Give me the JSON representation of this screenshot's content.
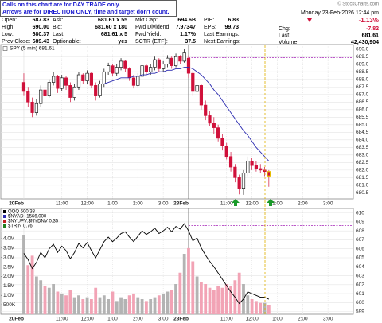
{
  "notice": [
    "Calls on this chart are for DAY TRADE only.",
    "Arrows are for DIRECTION ONLY, time and target don't count."
  ],
  "header": {
    "columns": [
      [
        [
          "Open:",
          "687.83"
        ],
        [
          "High:",
          "690.00"
        ],
        [
          "Low:",
          "680.37"
        ],
        [
          "Prev Close:",
          "689.43"
        ]
      ],
      [
        [
          "Ask:",
          "681.61 x 55"
        ],
        [
          "Bid:",
          "681.60 x 180"
        ],
        [
          "Last:",
          "681.61 x 5"
        ],
        [
          "Optionable:",
          "yes"
        ]
      ],
      [
        [
          "Mkt Cap:",
          "694.6B"
        ],
        [
          "Fwd Dividend:",
          "7.97347"
        ],
        [
          "Fwd Yield:",
          "1.17%"
        ],
        [
          "SCTR (ETF):",
          "37.5"
        ]
      ],
      [
        [
          "P/E:",
          "6.83"
        ],
        [
          "EPS:",
          "99.73"
        ],
        [
          "Last Earnings:"
        ],
        [
          "Next Earnings:"
        ]
      ]
    ],
    "date": "Monday 23-Feb-2026 12:44 pm",
    "change_pct": "-1.13%",
    "right": [
      [
        "Chg:",
        "-7.82"
      ],
      [
        "Last:",
        "681.61"
      ],
      [
        "Volume:",
        "42,430,904"
      ]
    ],
    "credit": "© StockCharts.com"
  },
  "chart_data": [
    {
      "type": "candlestick",
      "title": "SPY (5 min) 681.61",
      "x": [
        0,
        2,
        4,
        6,
        8,
        10,
        12,
        14,
        16,
        18,
        20,
        22,
        24,
        26,
        28,
        30,
        32,
        34,
        36,
        38,
        40,
        42,
        44,
        46,
        48,
        50,
        52,
        54,
        56,
        58,
        60,
        62,
        64,
        66,
        68,
        70,
        72,
        74,
        76,
        78,
        80,
        82,
        84,
        86,
        88,
        90,
        92,
        94,
        96,
        98,
        100,
        102,
        104,
        106,
        108,
        110,
        112,
        114,
        116
      ],
      "open": [
        687.8,
        687.2,
        686.5,
        685.8,
        686.4,
        687.3,
        686.9,
        687.8,
        688.2,
        687.4,
        688.1,
        687.6,
        686.8,
        687.5,
        688.3,
        687.9,
        688.4,
        687.6,
        686.9,
        687.7,
        688.5,
        688.9,
        688.4,
        688.8,
        689.2,
        688.7,
        688.1,
        687.6,
        688.2,
        688.9,
        688.5,
        688.8,
        689.3,
        688.7,
        689.0,
        689.4,
        688.9,
        689.5,
        689.2,
        689.4,
        688.4,
        687.2,
        687.6,
        686.3,
        685.6,
        685.1,
        684.8,
        684.1,
        683.6,
        682.9,
        682.2,
        681.5,
        680.8,
        681.8,
        682.6,
        682.3,
        682.1,
        682.0,
        681.9
      ],
      "high": [
        688.4,
        687.5,
        686.8,
        686.7,
        687.6,
        687.5,
        688.0,
        688.5,
        688.3,
        688.3,
        688.2,
        687.8,
        687.7,
        688.5,
        688.4,
        688.6,
        688.5,
        687.8,
        687.9,
        688.7,
        689.1,
        689.0,
        689.0,
        689.4,
        689.3,
        688.8,
        688.3,
        688.4,
        689.1,
        689.0,
        689.0,
        689.5,
        689.4,
        689.2,
        689.6,
        689.5,
        689.7,
        689.6,
        690.0,
        689.6,
        688.6,
        687.9,
        687.7,
        686.6,
        685.9,
        685.5,
        685.0,
        684.4,
        683.8,
        683.2,
        682.4,
        681.7,
        682.0,
        682.9,
        682.8,
        682.6,
        682.4,
        682.2,
        682.0
      ],
      "low": [
        686.9,
        686.2,
        685.5,
        685.6,
        686.2,
        686.6,
        686.8,
        687.6,
        687.1,
        687.2,
        687.3,
        686.5,
        686.6,
        687.3,
        687.7,
        687.7,
        687.4,
        686.6,
        686.8,
        687.5,
        688.3,
        688.2,
        688.2,
        688.6,
        688.5,
        687.9,
        687.4,
        687.5,
        688.0,
        688.3,
        688.3,
        688.6,
        688.5,
        688.5,
        688.8,
        688.7,
        688.8,
        689.0,
        689.1,
        688.1,
        686.9,
        686.8,
        686.0,
        685.3,
        684.9,
        684.4,
        683.9,
        683.3,
        682.7,
        681.9,
        681.2,
        680.4,
        680.37,
        681.6,
        682.0,
        681.9,
        681.8,
        681.6,
        680.9
      ],
      "close": [
        687.2,
        686.5,
        685.8,
        686.4,
        687.3,
        686.9,
        687.8,
        688.2,
        687.4,
        688.1,
        687.6,
        686.8,
        687.5,
        688.3,
        687.9,
        688.4,
        687.6,
        686.9,
        687.7,
        688.5,
        688.9,
        688.4,
        688.8,
        689.2,
        688.7,
        688.1,
        687.6,
        688.2,
        688.9,
        688.5,
        688.8,
        689.3,
        688.7,
        689.0,
        689.4,
        688.9,
        689.5,
        689.2,
        689.8,
        688.4,
        687.2,
        687.6,
        686.3,
        685.6,
        685.1,
        684.8,
        684.1,
        683.6,
        682.9,
        682.2,
        681.5,
        680.8,
        681.8,
        682.6,
        682.3,
        682.1,
        682.0,
        681.9,
        681.61
      ],
      "up_color": "#000000",
      "down_color": "#d0103a",
      "ma": {
        "color": "#2b2bb0",
        "values": [
          null,
          null,
          null,
          null,
          null,
          null,
          null,
          null,
          null,
          null,
          null,
          null,
          null,
          null,
          null,
          null,
          null,
          null,
          null,
          687.7,
          687.8,
          687.9,
          688.0,
          688.1,
          688.1,
          688.1,
          688.2,
          688.2,
          688.3,
          688.3,
          688.4,
          688.4,
          688.5,
          688.5,
          688.6,
          688.6,
          688.7,
          688.7,
          688.8,
          688.8,
          688.7,
          688.5,
          688.3,
          688.0,
          687.7,
          687.3,
          687.0,
          686.6,
          686.2,
          685.8,
          685.4,
          685.0,
          684.6,
          684.3,
          683.9,
          683.5,
          683.2,
          682.9,
          682.6
        ]
      },
      "reference_level": 689.43,
      "reference_color": "#b040c0",
      "xlim": [
        -3,
        156
      ],
      "xticks": [
        {
          "value": 0,
          "label": "20Feb"
        },
        {
          "value": 18,
          "label": "11:00"
        },
        {
          "value": 30,
          "label": "12:00"
        },
        {
          "value": 42,
          "label": "1:00"
        },
        {
          "value": 54,
          "label": "2:00"
        },
        {
          "value": 66,
          "label": "3:00"
        },
        {
          "value": 78,
          "label": "23Feb"
        },
        {
          "value": 96,
          "label": "11:00"
        },
        {
          "value": 108,
          "label": "12:00"
        },
        {
          "value": 120,
          "label": "1:00"
        },
        {
          "value": 132,
          "label": "2:00"
        },
        {
          "value": 144,
          "label": "3:00"
        }
      ],
      "ylim": [
        680.1,
        690.3
      ],
      "yticks": [
        680.5,
        {
          "value": 681,
          "label": "681.0"
        },
        681.5,
        {
          "value": 682,
          "label": "682.0"
        },
        682.5,
        {
          "value": 683,
          "label": "683.0"
        },
        683.5,
        {
          "value": 684,
          "label": "684.0"
        },
        684.5,
        {
          "value": 685,
          "label": "685.0"
        },
        685.5,
        {
          "value": 686,
          "label": "686.0"
        },
        686.5,
        {
          "value": 687,
          "label": "687.0"
        },
        687.5,
        {
          "value": 688,
          "label": "688.0"
        },
        688.5,
        {
          "value": 689,
          "label": "689.0"
        },
        689.5,
        {
          "value": 690,
          "label": "690.0"
        }
      ],
      "grid": true
    },
    {
      "type": "line",
      "x": [
        0,
        2,
        4,
        6,
        8,
        10,
        12,
        14,
        16,
        18,
        20,
        22,
        24,
        26,
        28,
        30,
        32,
        34,
        36,
        38,
        40,
        42,
        44,
        46,
        48,
        50,
        52,
        54,
        56,
        58,
        60,
        62,
        64,
        66,
        68,
        70,
        72,
        74,
        76,
        78,
        80,
        82,
        84,
        86,
        88,
        90,
        92,
        94,
        96,
        98,
        100,
        102,
        104,
        106,
        108,
        110,
        112,
        114,
        116
      ],
      "series": [
        {
          "name": "QQQ 600.38",
          "color": "#000000",
          "values": [
            605.5,
            604.8,
            603.8,
            604.5,
            605.6,
            605.0,
            606.0,
            606.5,
            605.6,
            606.3,
            605.8,
            604.9,
            605.6,
            606.6,
            606.1,
            606.7,
            605.8,
            605.0,
            605.9,
            606.8,
            607.3,
            606.8,
            607.2,
            607.7,
            607.9,
            607.3,
            606.8,
            607.4,
            608.0,
            607.6,
            607.9,
            608.3,
            607.7,
            608.0,
            608.4,
            607.9,
            608.5,
            608.2,
            608.8,
            608.0,
            606.9,
            607.2,
            606.1,
            605.3,
            604.6,
            604.0,
            603.3,
            602.6,
            601.9,
            601.2,
            600.6,
            599.9,
            600.4,
            601.2,
            601.0,
            600.8,
            600.6,
            600.6,
            600.38
          ]
        },
        {
          "axis": "y2",
          "kind": "bar",
          "colors": [
            "#b3b3b3",
            "#f2a3b5"
          ],
          "values": [
            4200000,
            2600000,
            3100000,
            2000000,
            1800000,
            1500000,
            1400000,
            1600000,
            1200000,
            1100000,
            1000000,
            1300000,
            900000,
            1000000,
            800000,
            900000,
            800000,
            1400000,
            900000,
            1000000,
            800000,
            1200000,
            700000,
            900000,
            800000,
            1000000,
            1100000,
            900000,
            800000,
            700000,
            800000,
            900000,
            1000000,
            1100000,
            1200000,
            1300000,
            1600000,
            2200000,
            3200000,
            3500000,
            2800000,
            2000000,
            1700000,
            1600000,
            1400000,
            1300000,
            1500000,
            1400000,
            1600000,
            1500000,
            1800000,
            2200000,
            1600000,
            1000000,
            800000,
            700000,
            600000,
            600000,
            500000
          ]
        }
      ],
      "legend_extra": [
        {
          "name": "$NYAD -1566.000",
          "color": "#2b2bb0"
        },
        {
          "name": "$NYUPV:$NYDNV 0.35",
          "color": "#c02020"
        },
        {
          "name": "$TRIN 0.76",
          "color": "#208020"
        }
      ],
      "reference_level": 608.6,
      "reference_color": "#b040c0",
      "xlim": [
        -3,
        156
      ],
      "xticks": [
        {
          "value": 0,
          "label": "20Feb"
        },
        {
          "value": 18,
          "label": "11:00"
        },
        {
          "value": 30,
          "label": "12:00"
        },
        {
          "value": 42,
          "label": "1:00"
        },
        {
          "value": 54,
          "label": "2:00"
        },
        {
          "value": 66,
          "label": "3:00"
        },
        {
          "value": 78,
          "label": "23Feb"
        },
        {
          "value": 96,
          "label": "11:00"
        },
        {
          "value": 108,
          "label": "12:00"
        },
        {
          "value": 120,
          "label": "1:00"
        },
        {
          "value": 132,
          "label": "2:00"
        },
        {
          "value": 144,
          "label": "3:00"
        }
      ],
      "ylim": [
        598.7,
        610.5
      ],
      "yticks": [
        599,
        600,
        601,
        602,
        603,
        604,
        605,
        606,
        607,
        608,
        609,
        610
      ],
      "y2lim": [
        0,
        5600000
      ],
      "y2ticks": [
        {
          "value": 500000,
          "label": "500K"
        },
        {
          "value": 1000000,
          "label": "1.0M"
        },
        {
          "value": 1500000,
          "label": "1.5M"
        },
        {
          "value": 2000000,
          "label": "2.0M"
        },
        {
          "value": 2500000,
          "label": "2.5M"
        },
        {
          "value": 3000000,
          "label": "3.0M"
        },
        {
          "value": 3500000,
          "label": "3.5M"
        },
        {
          "value": 4000000,
          "label": "4.0M"
        }
      ],
      "grid": true
    }
  ]
}
